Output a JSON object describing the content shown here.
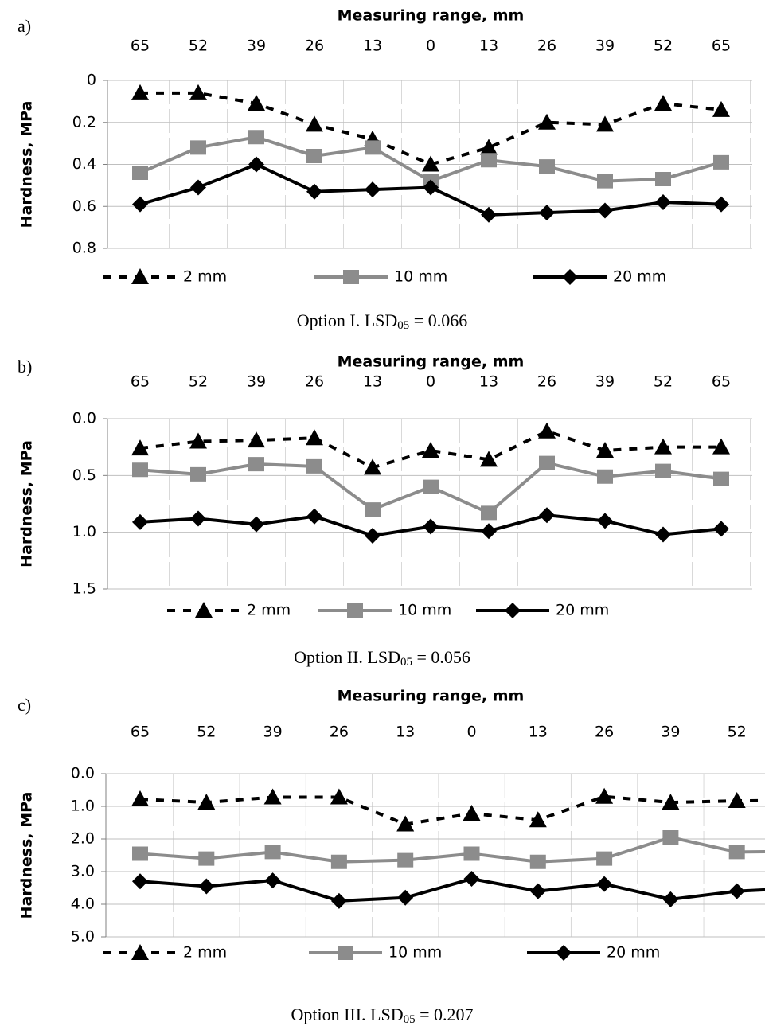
{
  "chart_data": [
    {
      "type": "line",
      "panel": "a)",
      "title": "Measuring range, mm",
      "y_label": "Hardness, MPa",
      "caption": [
        "Option I. LSD",
        "05",
        " = 0.066"
      ],
      "categories": [
        "65",
        "52",
        "39",
        "26",
        "13",
        "0",
        "13",
        "26",
        "39",
        "52",
        "65"
      ],
      "ylim": [
        0,
        0.8
      ],
      "yticks": [
        0,
        0.2,
        0.4,
        0.6,
        0.8
      ],
      "y_reversed": true,
      "grid": true,
      "series": [
        {
          "name": "2 mm",
          "color": "#000000",
          "dash": true,
          "marker": "triangle",
          "values": [
            0.06,
            0.06,
            0.11,
            0.21,
            0.28,
            0.4,
            0.32,
            0.2,
            0.21,
            0.11,
            0.14
          ]
        },
        {
          "name": "10 mm",
          "color": "#8c8c8c",
          "dash": false,
          "marker": "square",
          "values": [
            0.44,
            0.32,
            0.27,
            0.36,
            0.32,
            0.48,
            0.38,
            0.41,
            0.48,
            0.47,
            0.39
          ]
        },
        {
          "name": "20 mm",
          "color": "#000000",
          "dash": false,
          "marker": "diamond",
          "values": [
            0.59,
            0.51,
            0.4,
            0.53,
            0.52,
            0.51,
            0.64,
            0.63,
            0.62,
            0.58,
            0.59
          ]
        }
      ]
    },
    {
      "type": "line",
      "panel": "b)",
      "title": "Measuring range, mm",
      "y_label": "Hardness, MPa",
      "caption": [
        "Option II. LSD",
        "05",
        " = 0.056"
      ],
      "categories": [
        "65",
        "52",
        "39",
        "26",
        "13",
        "0",
        "13",
        "26",
        "39",
        "52",
        "65"
      ],
      "ylim": [
        0,
        1.5
      ],
      "yticks": [
        {
          "value": 0,
          "label": "0.0"
        },
        0.5,
        {
          "value": 1,
          "label": "1.0"
        },
        1.5
      ],
      "y_reversed": true,
      "grid": true,
      "series": [
        {
          "name": "2 mm",
          "color": "#000000",
          "dash": true,
          "marker": "triangle",
          "values": [
            0.26,
            0.2,
            0.19,
            0.17,
            0.43,
            0.28,
            0.36,
            0.11,
            0.28,
            0.25,
            0.25
          ]
        },
        {
          "name": "10 mm",
          "color": "#8c8c8c",
          "dash": false,
          "marker": "square",
          "values": [
            0.45,
            0.49,
            0.4,
            0.42,
            0.8,
            0.6,
            0.83,
            0.39,
            0.51,
            0.46,
            0.53
          ]
        },
        {
          "name": "20 mm",
          "color": "#000000",
          "dash": false,
          "marker": "diamond",
          "values": [
            0.91,
            0.88,
            0.93,
            0.86,
            1.03,
            0.95,
            0.99,
            0.85,
            0.9,
            1.02,
            0.97
          ]
        }
      ]
    },
    {
      "type": "line",
      "panel": "c)",
      "title": "Measuring range, mm",
      "y_label": "Hardness, MPa",
      "caption": [
        "Option III. LSD",
        "05",
        " = 0.207"
      ],
      "categories": [
        "65",
        "52",
        "39",
        "26",
        "13",
        "0",
        "13",
        "26",
        "39",
        "52",
        null
      ],
      "ylim": [
        0,
        5
      ],
      "yticks": [
        {
          "value": 0,
          "label": "0.0"
        },
        {
          "value": 1,
          "label": "1.0"
        },
        {
          "value": 2,
          "label": "2.0"
        },
        {
          "value": 3,
          "label": "3.0"
        },
        {
          "value": 4,
          "label": "4.0"
        },
        {
          "value": 5,
          "label": "5.0"
        }
      ],
      "y_reversed": true,
      "grid": true,
      "series": [
        {
          "name": "2 mm",
          "color": "#000000",
          "dash": true,
          "marker": "triangle",
          "values": [
            0.78,
            0.88,
            0.72,
            0.72,
            1.55,
            1.22,
            1.42,
            0.7,
            0.88,
            0.83,
            0.82
          ]
        },
        {
          "name": "10 mm",
          "color": "#8c8c8c",
          "dash": false,
          "marker": "square",
          "values": [
            2.45,
            2.6,
            2.4,
            2.7,
            2.65,
            2.45,
            2.7,
            2.6,
            1.95,
            2.4,
            2.38
          ]
        },
        {
          "name": "20 mm",
          "color": "#000000",
          "dash": false,
          "marker": "diamond",
          "values": [
            3.3,
            3.45,
            3.27,
            3.9,
            3.8,
            3.22,
            3.6,
            3.38,
            3.85,
            3.6,
            3.5
          ]
        }
      ]
    }
  ]
}
